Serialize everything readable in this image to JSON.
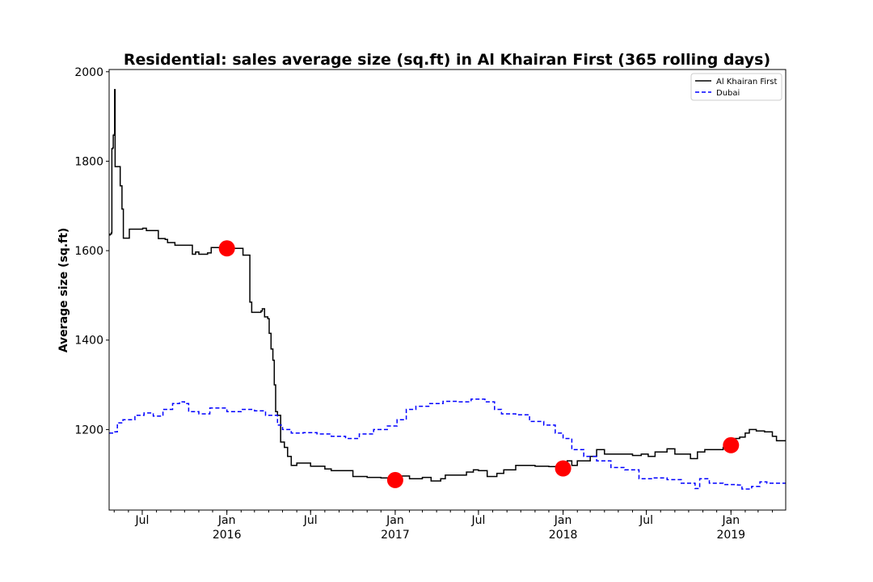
{
  "chart_data": {
    "type": "line",
    "title": "Residential: sales average size (sq.ft) in Al Khairan First (365 rolling days)",
    "xlabel": "",
    "ylabel": "Average size (sq.ft)",
    "xlim": [
      "2015-04-20",
      "2019-04-30"
    ],
    "ylim": [
      1020,
      2005
    ],
    "y_ticks": [
      1200,
      1400,
      1600,
      1800,
      2000
    ],
    "x_ticks": [
      {
        "date": "2015-07-01",
        "label": "Jul",
        "year": ""
      },
      {
        "date": "2016-01-01",
        "label": "Jan",
        "year": "2016"
      },
      {
        "date": "2016-07-01",
        "label": "Jul",
        "year": ""
      },
      {
        "date": "2017-01-01",
        "label": "Jan",
        "year": "2017"
      },
      {
        "date": "2017-07-01",
        "label": "Jul",
        "year": ""
      },
      {
        "date": "2018-01-01",
        "label": "Jan",
        "year": "2018"
      },
      {
        "date": "2018-07-01",
        "label": "Jul",
        "year": ""
      },
      {
        "date": "2019-01-01",
        "label": "Jan",
        "year": "2019"
      }
    ],
    "grid": false,
    "legend_position": "top-right",
    "series": [
      {
        "name": "Al Khairan First",
        "color": "#000000",
        "style": "solid",
        "points": [
          [
            "2015-04-20",
            1635
          ],
          [
            "2015-04-22",
            1637
          ],
          [
            "2015-04-25",
            1640
          ],
          [
            "2015-04-26",
            1828
          ],
          [
            "2015-04-28",
            1830
          ],
          [
            "2015-04-29",
            1858
          ],
          [
            "2015-05-01",
            1860
          ],
          [
            "2015-05-02",
            1960
          ],
          [
            "2015-05-03",
            1788
          ],
          [
            "2015-05-12",
            1788
          ],
          [
            "2015-05-14",
            1745
          ],
          [
            "2015-05-17",
            1745
          ],
          [
            "2015-05-18",
            1693
          ],
          [
            "2015-05-20",
            1693
          ],
          [
            "2015-05-21",
            1628
          ],
          [
            "2015-06-02",
            1628
          ],
          [
            "2015-06-03",
            1648
          ],
          [
            "2015-07-02",
            1650
          ],
          [
            "2015-07-10",
            1645
          ],
          [
            "2015-08-01",
            1645
          ],
          [
            "2015-08-05",
            1627
          ],
          [
            "2015-08-20",
            1625
          ],
          [
            "2015-08-25",
            1618
          ],
          [
            "2015-09-10",
            1612
          ],
          [
            "2015-10-15",
            1612
          ],
          [
            "2015-10-18",
            1592
          ],
          [
            "2015-10-25",
            1597
          ],
          [
            "2015-11-01",
            1592
          ],
          [
            "2015-11-20",
            1595
          ],
          [
            "2015-11-28",
            1607
          ],
          [
            "2016-01-01",
            1605
          ],
          [
            "2016-02-01",
            1605
          ],
          [
            "2016-02-05",
            1590
          ],
          [
            "2016-02-18",
            1590
          ],
          [
            "2016-02-20",
            1485
          ],
          [
            "2016-02-24",
            1462
          ],
          [
            "2016-03-15",
            1465
          ],
          [
            "2016-03-18",
            1470
          ],
          [
            "2016-03-23",
            1452
          ],
          [
            "2016-03-30",
            1448
          ],
          [
            "2016-04-02",
            1415
          ],
          [
            "2016-04-06",
            1380
          ],
          [
            "2016-04-10",
            1355
          ],
          [
            "2016-04-13",
            1300
          ],
          [
            "2016-04-16",
            1240
          ],
          [
            "2016-04-20",
            1232
          ],
          [
            "2016-04-24",
            1232
          ],
          [
            "2016-04-27",
            1172
          ],
          [
            "2016-05-05",
            1160
          ],
          [
            "2016-05-12",
            1140
          ],
          [
            "2016-05-20",
            1120
          ],
          [
            "2016-06-01",
            1125
          ],
          [
            "2016-07-01",
            1118
          ],
          [
            "2016-08-01",
            1112
          ],
          [
            "2016-08-15",
            1108
          ],
          [
            "2016-09-15",
            1108
          ],
          [
            "2016-10-01",
            1095
          ],
          [
            "2016-11-01",
            1093
          ],
          [
            "2016-12-01",
            1092
          ],
          [
            "2017-01-01",
            1087
          ],
          [
            "2017-01-15",
            1096
          ],
          [
            "2017-02-01",
            1090
          ],
          [
            "2017-03-01",
            1093
          ],
          [
            "2017-03-20",
            1085
          ],
          [
            "2017-04-10",
            1090
          ],
          [
            "2017-04-20",
            1098
          ],
          [
            "2017-05-15",
            1098
          ],
          [
            "2017-06-05",
            1105
          ],
          [
            "2017-06-20",
            1110
          ],
          [
            "2017-07-01",
            1108
          ],
          [
            "2017-07-20",
            1095
          ],
          [
            "2017-08-10",
            1102
          ],
          [
            "2017-08-25",
            1110
          ],
          [
            "2017-09-20",
            1120
          ],
          [
            "2017-10-10",
            1120
          ],
          [
            "2017-11-01",
            1118
          ],
          [
            "2017-12-01",
            1117
          ],
          [
            "2018-01-01",
            1113
          ],
          [
            "2018-01-10",
            1130
          ],
          [
            "2018-01-20",
            1120
          ],
          [
            "2018-02-01",
            1130
          ],
          [
            "2018-03-01",
            1140
          ],
          [
            "2018-03-15",
            1155
          ],
          [
            "2018-04-01",
            1145
          ],
          [
            "2018-05-01",
            1145
          ],
          [
            "2018-06-01",
            1142
          ],
          [
            "2018-06-20",
            1145
          ],
          [
            "2018-07-05",
            1140
          ],
          [
            "2018-07-20",
            1150
          ],
          [
            "2018-08-15",
            1157
          ],
          [
            "2018-09-01",
            1145
          ],
          [
            "2018-09-25",
            1145
          ],
          [
            "2018-10-05",
            1135
          ],
          [
            "2018-10-20",
            1150
          ],
          [
            "2018-11-05",
            1155
          ],
          [
            "2018-11-20",
            1155
          ],
          [
            "2018-12-15",
            1160
          ],
          [
            "2019-01-01",
            1165
          ],
          [
            "2019-01-10",
            1180
          ],
          [
            "2019-01-20",
            1183
          ],
          [
            "2019-02-01",
            1192
          ],
          [
            "2019-02-10",
            1200
          ],
          [
            "2019-02-25",
            1197
          ],
          [
            "2019-03-15",
            1195
          ],
          [
            "2019-04-01",
            1185
          ],
          [
            "2019-04-10",
            1175
          ],
          [
            "2019-04-30",
            1175
          ]
        ]
      },
      {
        "name": "Dubai",
        "color": "#0000ff",
        "style": "dashed",
        "points": [
          [
            "2015-04-20",
            1192
          ],
          [
            "2015-05-01",
            1195
          ],
          [
            "2015-05-08",
            1215
          ],
          [
            "2015-05-20",
            1222
          ],
          [
            "2015-06-15",
            1232
          ],
          [
            "2015-07-05",
            1237
          ],
          [
            "2015-07-25",
            1230
          ],
          [
            "2015-08-15",
            1245
          ],
          [
            "2015-09-05",
            1258
          ],
          [
            "2015-09-20",
            1262
          ],
          [
            "2015-10-01",
            1258
          ],
          [
            "2015-10-10",
            1240
          ],
          [
            "2015-11-01",
            1235
          ],
          [
            "2015-11-25",
            1248
          ],
          [
            "2016-01-01",
            1240
          ],
          [
            "2016-02-01",
            1245
          ],
          [
            "2016-03-01",
            1242
          ],
          [
            "2016-03-25",
            1232
          ],
          [
            "2016-04-20",
            1210
          ],
          [
            "2016-05-01",
            1200
          ],
          [
            "2016-05-20",
            1192
          ],
          [
            "2016-06-15",
            1193
          ],
          [
            "2016-07-15",
            1190
          ],
          [
            "2016-08-15",
            1185
          ],
          [
            "2016-09-15",
            1180
          ],
          [
            "2016-10-15",
            1190
          ],
          [
            "2016-11-15",
            1200
          ],
          [
            "2016-12-15",
            1208
          ],
          [
            "2017-01-05",
            1222
          ],
          [
            "2017-01-25",
            1245
          ],
          [
            "2017-02-15",
            1252
          ],
          [
            "2017-03-15",
            1258
          ],
          [
            "2017-04-15",
            1263
          ],
          [
            "2017-05-15",
            1262
          ],
          [
            "2017-06-15",
            1268
          ],
          [
            "2017-07-15",
            1262
          ],
          [
            "2017-08-05",
            1245
          ],
          [
            "2017-08-20",
            1235
          ],
          [
            "2017-09-20",
            1233
          ],
          [
            "2017-10-20",
            1218
          ],
          [
            "2017-11-20",
            1210
          ],
          [
            "2017-12-15",
            1192
          ],
          [
            "2018-01-01",
            1180
          ],
          [
            "2018-01-20",
            1155
          ],
          [
            "2018-02-15",
            1140
          ],
          [
            "2018-03-15",
            1130
          ],
          [
            "2018-04-15",
            1115
          ],
          [
            "2018-05-15",
            1110
          ],
          [
            "2018-06-15",
            1090
          ],
          [
            "2018-07-15",
            1092
          ],
          [
            "2018-08-15",
            1088
          ],
          [
            "2018-09-15",
            1080
          ],
          [
            "2018-10-15",
            1068
          ],
          [
            "2018-10-25",
            1090
          ],
          [
            "2018-11-15",
            1080
          ],
          [
            "2018-12-15",
            1077
          ],
          [
            "2019-01-15",
            1076
          ],
          [
            "2019-01-25",
            1067
          ],
          [
            "2019-02-15",
            1073
          ],
          [
            "2019-03-05",
            1083
          ],
          [
            "2019-03-20",
            1080
          ],
          [
            "2019-04-30",
            1080
          ]
        ]
      }
    ],
    "markers": [
      {
        "date": "2016-01-01",
        "value": 1605,
        "color": "#ff0000"
      },
      {
        "date": "2017-01-01",
        "value": 1087,
        "color": "#ff0000"
      },
      {
        "date": "2018-01-01",
        "value": 1113,
        "color": "#ff0000"
      },
      {
        "date": "2019-01-01",
        "value": 1165,
        "color": "#ff0000"
      }
    ]
  }
}
